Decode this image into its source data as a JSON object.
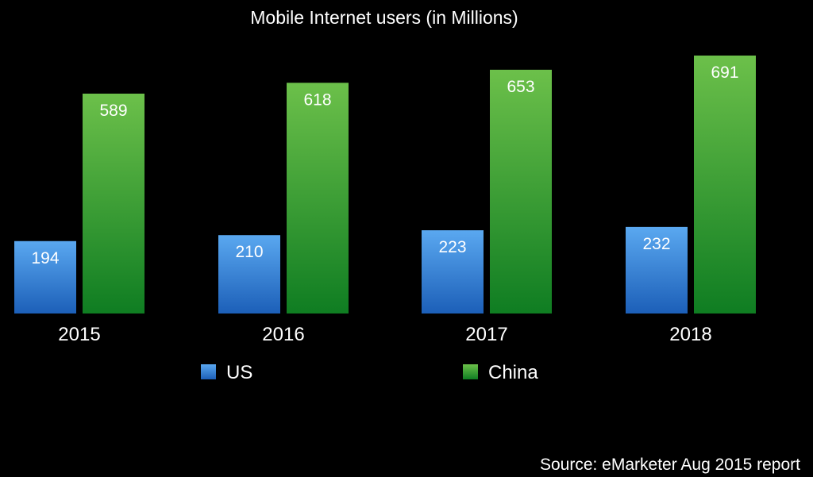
{
  "chart_data": {
    "type": "bar",
    "title": "Mobile Internet users (in Millions)",
    "xlabel": "",
    "ylabel": "",
    "ylim": [
      0,
      760
    ],
    "grid": false,
    "legend_position": "bottom-center",
    "categories": [
      "2015",
      "2016",
      "2017",
      "2018"
    ],
    "series": [
      {
        "name": "US",
        "values": [
          194,
          210,
          223,
          232
        ],
        "labels": [
          "194",
          "210",
          "223",
          "232"
        ],
        "color": "#2f80d8",
        "color_light": "#5aa8f0",
        "color_dark": "#1c5fb8"
      },
      {
        "name": "China",
        "values": [
          589,
          618,
          653,
          691
        ],
        "labels": [
          "589",
          "618",
          "653",
          "691"
        ],
        "color": "#2a9a32",
        "color_light": "#6cc04a",
        "color_dark": "#0f7d22"
      }
    ],
    "source": "Source: eMarketer Aug 2015 report"
  }
}
